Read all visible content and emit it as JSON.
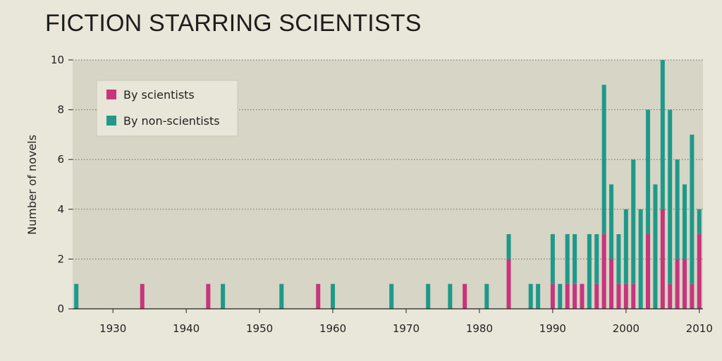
{
  "chart_data": {
    "type": "bar",
    "stacked": true,
    "title": "FICTION STARRING SCIENTISTS",
    "ylabel": "Number of novels",
    "xlabel": "",
    "xlim": [
      1924.5,
      2010.5
    ],
    "ylim": [
      0,
      10
    ],
    "yticks": [
      0,
      2,
      4,
      6,
      8,
      10
    ],
    "xticks": [
      1930,
      1940,
      1950,
      1960,
      1970,
      1980,
      1990,
      2000,
      2010
    ],
    "grid": "horizontal dotted",
    "legend_position": "top-left",
    "colors": {
      "plot_bg": "#d6d5c6",
      "page_bg": "#e9e7d9",
      "legend_bg": "#e7e6d8"
    },
    "x": [
      1925,
      1934,
      1943,
      1945,
      1953,
      1958,
      1960,
      1968,
      1973,
      1976,
      1978,
      1981,
      1984,
      1987,
      1988,
      1990,
      1991,
      1992,
      1993,
      1994,
      1995,
      1996,
      1997,
      1998,
      1999,
      2000,
      2001,
      2002,
      2003,
      2004,
      2005,
      2006,
      2007,
      2008,
      2009,
      2010
    ],
    "series": [
      {
        "name": "By scientists",
        "color": "#c8357c",
        "values": [
          0,
          1,
          1,
          0,
          0,
          1,
          0,
          0,
          0,
          0,
          1,
          0,
          2,
          0,
          0,
          1,
          0,
          1,
          1,
          1,
          0,
          1,
          3,
          2,
          1,
          1,
          1,
          0,
          3,
          0,
          4,
          1,
          2,
          2,
          1,
          3
        ]
      },
      {
        "name": "By non-scientists",
        "color": "#1f9989",
        "values": [
          1,
          0,
          0,
          1,
          1,
          0,
          1,
          1,
          1,
          1,
          0,
          1,
          1,
          1,
          1,
          2,
          1,
          2,
          2,
          0,
          3,
          2,
          6,
          3,
          2,
          3,
          5,
          4,
          5,
          5,
          6,
          7,
          4,
          3,
          6,
          1
        ]
      }
    ]
  }
}
